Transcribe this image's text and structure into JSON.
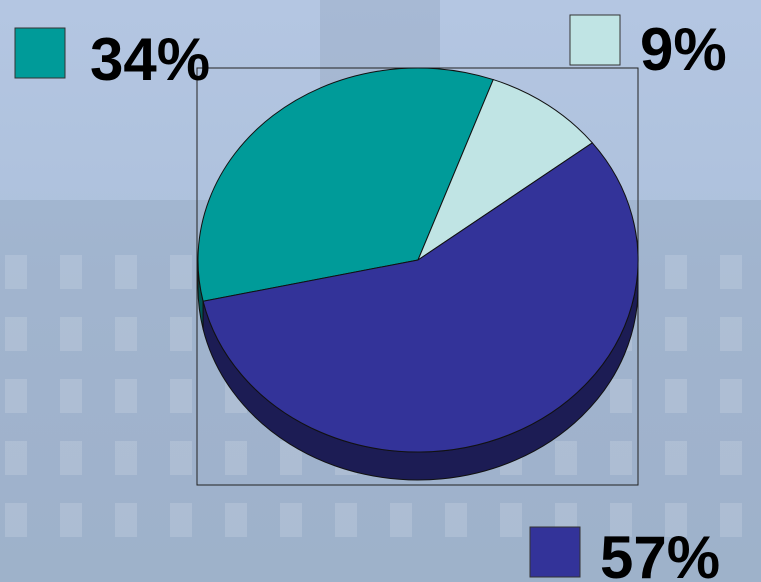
{
  "chart_data": {
    "type": "pie",
    "values": [
      34,
      9,
      57
    ],
    "value_labels": [
      "34%",
      "9%",
      "57%"
    ],
    "colors": [
      "#009b99",
      "#c0e4e4",
      "#333399"
    ]
  }
}
